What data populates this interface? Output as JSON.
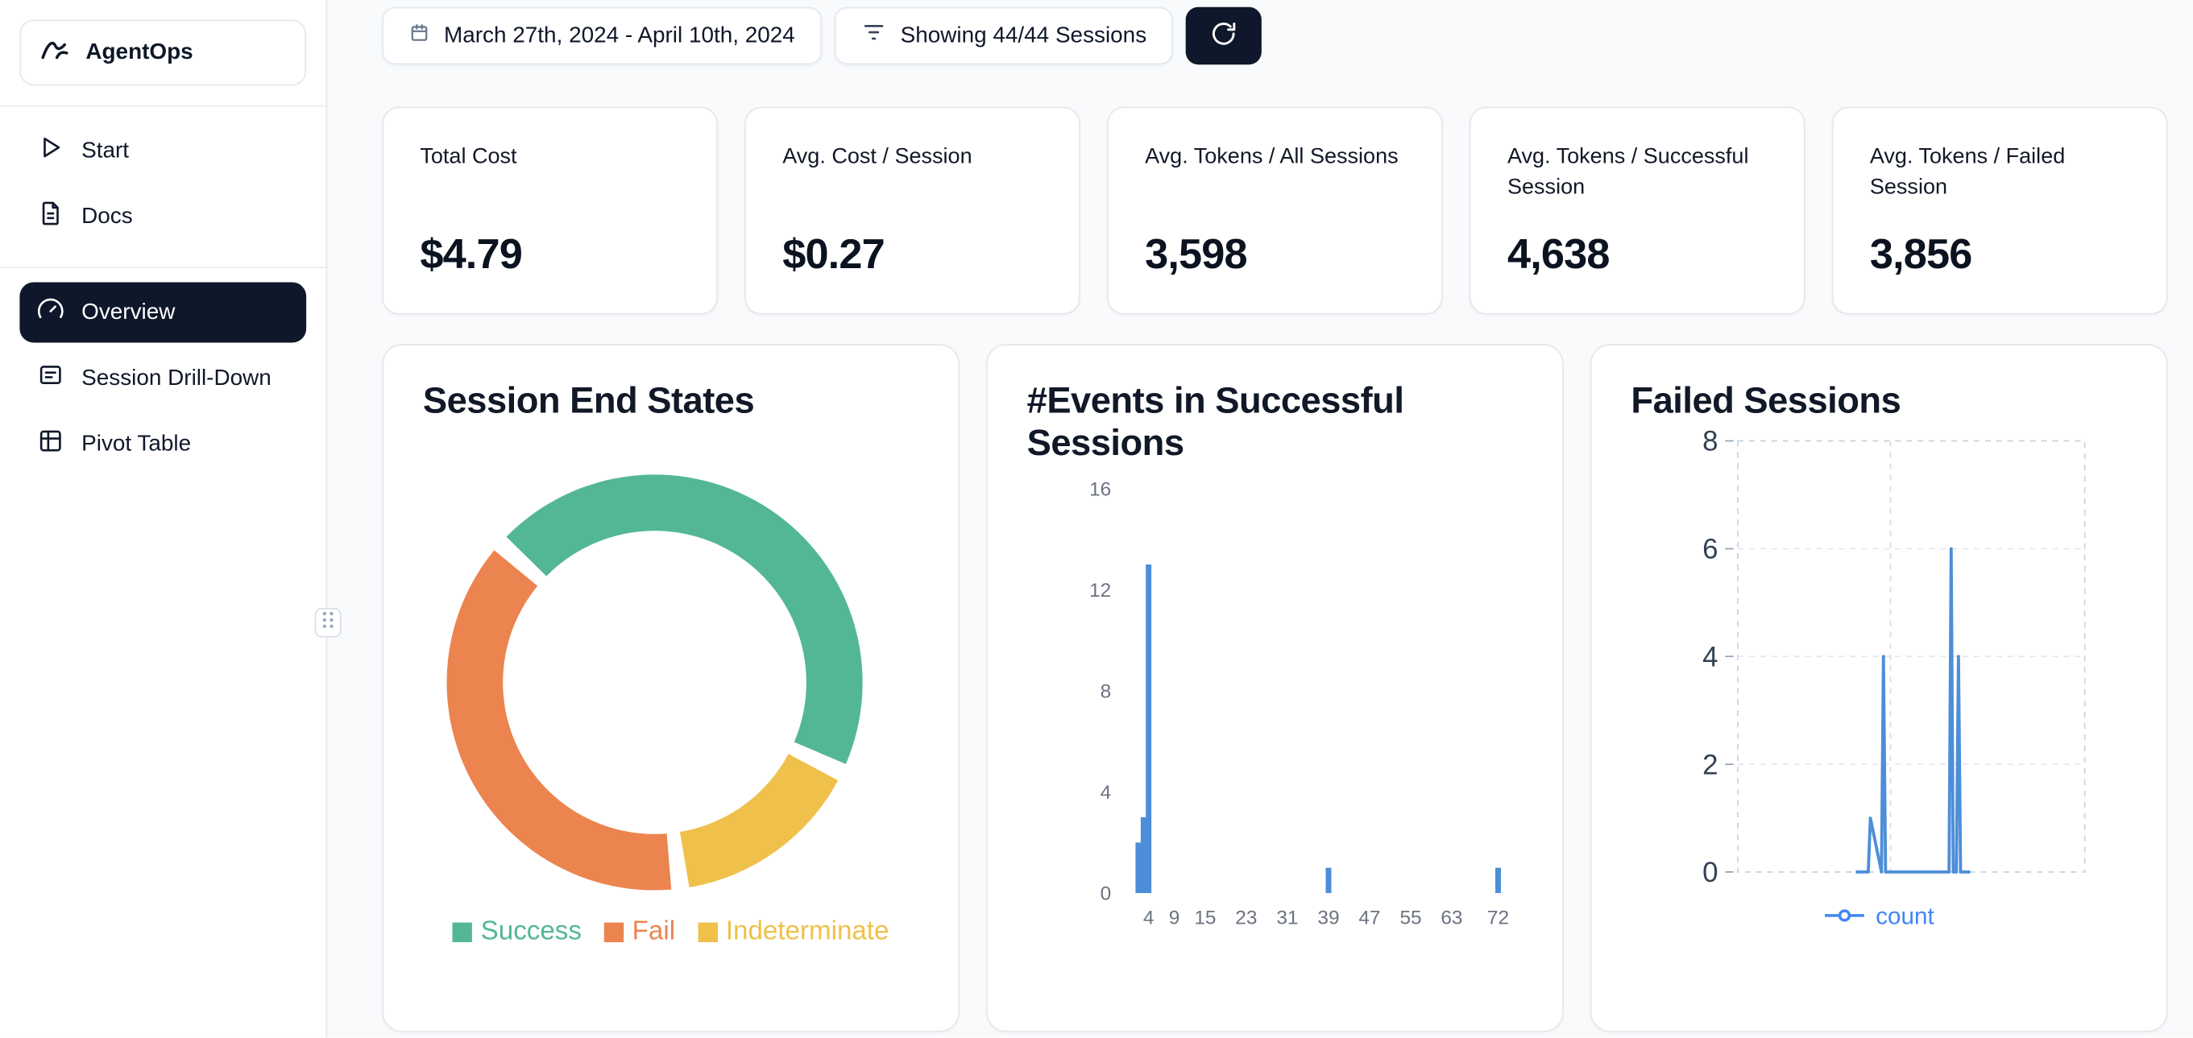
{
  "app": {
    "name": "AgentOps",
    "logo_icon": "agentops-logo-icon"
  },
  "sidebar": {
    "items": [
      {
        "label": "Start",
        "icon": "play-icon",
        "active": false
      },
      {
        "label": "Docs",
        "icon": "document-icon",
        "active": false
      },
      {
        "label": "Overview",
        "icon": "gauge-icon",
        "active": true
      },
      {
        "label": "Session Drill-Down",
        "icon": "list-square-icon",
        "active": false
      },
      {
        "label": "Pivot Table",
        "icon": "pivot-table-icon",
        "active": false
      }
    ],
    "resize_handle_icon": "drag-dots-icon"
  },
  "topbar": {
    "date_range": "March 27th, 2024 - April 10th, 2024",
    "date_icon": "calendar-icon",
    "sessions_filter": "Showing 44/44 Sessions",
    "filter_icon": "filter-icon",
    "refresh_icon": "refresh-icon"
  },
  "stats": [
    {
      "label": "Total Cost",
      "value": "$4.79"
    },
    {
      "label": "Avg. Cost / Session",
      "value": "$0.27"
    },
    {
      "label": "Avg. Tokens / All Sessions",
      "value": "3,598"
    },
    {
      "label": "Avg. Tokens / Successful Session",
      "value": "4,638"
    },
    {
      "label": "Avg. Tokens / Failed Session",
      "value": "3,856"
    }
  ],
  "colors": {
    "accent_dark": "#0f172a",
    "background": "#f8fafc",
    "card_border": "#e5e7eb",
    "success_green": "#53b795",
    "fail_orange": "#ec8450",
    "indeterminate_yellow": "#efc04a",
    "chart_blue": "#4d8ed8",
    "legend_blue_text": "#4285f4"
  },
  "chart_data": [
    {
      "type": "pie",
      "title": "Session End States",
      "slices": [
        {
          "label": "Success",
          "value": 20,
          "color": "#53b795"
        },
        {
          "label": "Fail",
          "value": 17,
          "color": "#ec8450"
        },
        {
          "label": "Indeterminate",
          "value": 7,
          "color": "#efc04a"
        }
      ],
      "total_sessions": 44,
      "draw_order": [
        0,
        2,
        1
      ],
      "start_angle_deg": -48,
      "pad_angle_deg": 5,
      "inner_radius_ratio": 0.73,
      "legend_position": "bottom"
    },
    {
      "type": "bar",
      "title": "#Events in Successful Sessions",
      "xlabel": "",
      "ylabel": "",
      "x": [
        2,
        3,
        4,
        39,
        72
      ],
      "values": [
        2,
        3,
        13,
        1,
        1
      ],
      "x_ticks": [
        4,
        9,
        15,
        23,
        31,
        39,
        47,
        55,
        63,
        72
      ],
      "y_ticks": [
        0,
        4,
        8,
        12,
        16
      ],
      "xlim": [
        0,
        76
      ],
      "ylim": [
        0,
        16
      ],
      "bar_color": "#4d8ed8",
      "grid": false
    },
    {
      "type": "line",
      "title": "Failed Sessions",
      "series": [
        {
          "name": "count",
          "color": "#4d8ed8",
          "x": [
            34,
            37.6,
            38.2,
            41.4,
            42,
            42.6,
            60.9,
            61.5,
            62.1,
            63,
            63.6,
            64.2,
            67
          ],
          "y": [
            0,
            0,
            1,
            0,
            4,
            0,
            0,
            6,
            0,
            0,
            4,
            0,
            0
          ]
        }
      ],
      "legend_text_color": "#4285f4",
      "y_ticks": [
        0,
        2,
        4,
        6,
        8
      ],
      "xlim": [
        0,
        100
      ],
      "ylim": [
        0,
        8
      ],
      "grid": "dashed",
      "v_grid_x": [
        44
      ],
      "legend_position": "bottom"
    }
  ]
}
